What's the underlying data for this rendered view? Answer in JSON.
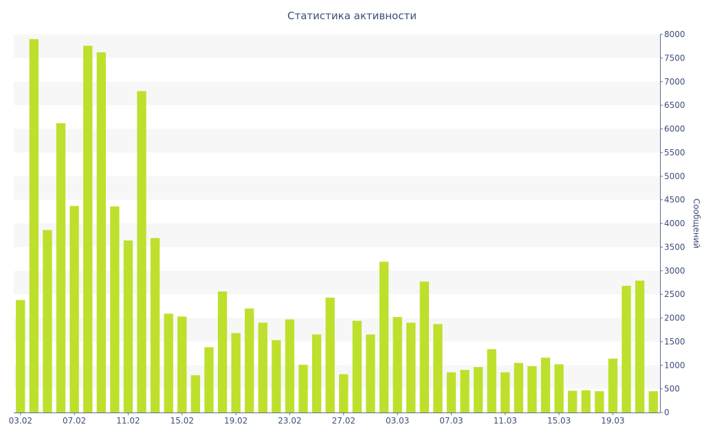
{
  "chart_data": {
    "type": "bar",
    "title": "Статистика активности",
    "ylabel": "Сообщений",
    "xlabel": "",
    "ylim": [
      0,
      8000
    ],
    "yticks": [
      0,
      500,
      1000,
      1500,
      2000,
      2500,
      3000,
      3500,
      4000,
      4500,
      5000,
      5500,
      6000,
      6500,
      7000,
      7500,
      8000
    ],
    "y_axis_side": "right",
    "grid": "horizontal alternating bands",
    "bar_color": "#bde02c",
    "band_color": "#f7f7f7",
    "text_color": "#3d4d7a",
    "categories": [
      "03.02",
      "04.02",
      "05.02",
      "06.02",
      "07.02",
      "08.02",
      "09.02",
      "10.02",
      "11.02",
      "12.02",
      "13.02",
      "14.02",
      "15.02",
      "16.02",
      "17.02",
      "18.02",
      "19.02",
      "20.02",
      "21.02",
      "22.02",
      "23.02",
      "24.02",
      "25.02",
      "26.02",
      "27.02",
      "28.02",
      "01.03",
      "02.03",
      "03.03",
      "04.03",
      "05.03",
      "06.03",
      "07.03",
      "08.03",
      "09.03",
      "10.03",
      "11.03",
      "12.03",
      "13.03",
      "14.03",
      "15.03",
      "16.03",
      "17.03",
      "18.03",
      "19.03",
      "20.03",
      "21.03",
      "22.03"
    ],
    "xticks": [
      "03.02",
      "07.02",
      "11.02",
      "15.02",
      "19.02",
      "23.02",
      "27.02",
      "03.03",
      "07.03",
      "11.03",
      "15.03",
      "19.03"
    ],
    "values": [
      2380,
      7900,
      3860,
      6120,
      4370,
      7760,
      7620,
      4360,
      3640,
      6800,
      3690,
      2090,
      2030,
      790,
      1380,
      2560,
      1680,
      2200,
      1900,
      1530,
      1970,
      1010,
      1650,
      2430,
      810,
      1940,
      1650,
      3190,
      2020,
      1900,
      2770,
      1870,
      850,
      900,
      960,
      1340,
      850,
      1050,
      980,
      1160,
      1020,
      460,
      470,
      450,
      1140,
      2680,
      2790,
      450
    ]
  }
}
